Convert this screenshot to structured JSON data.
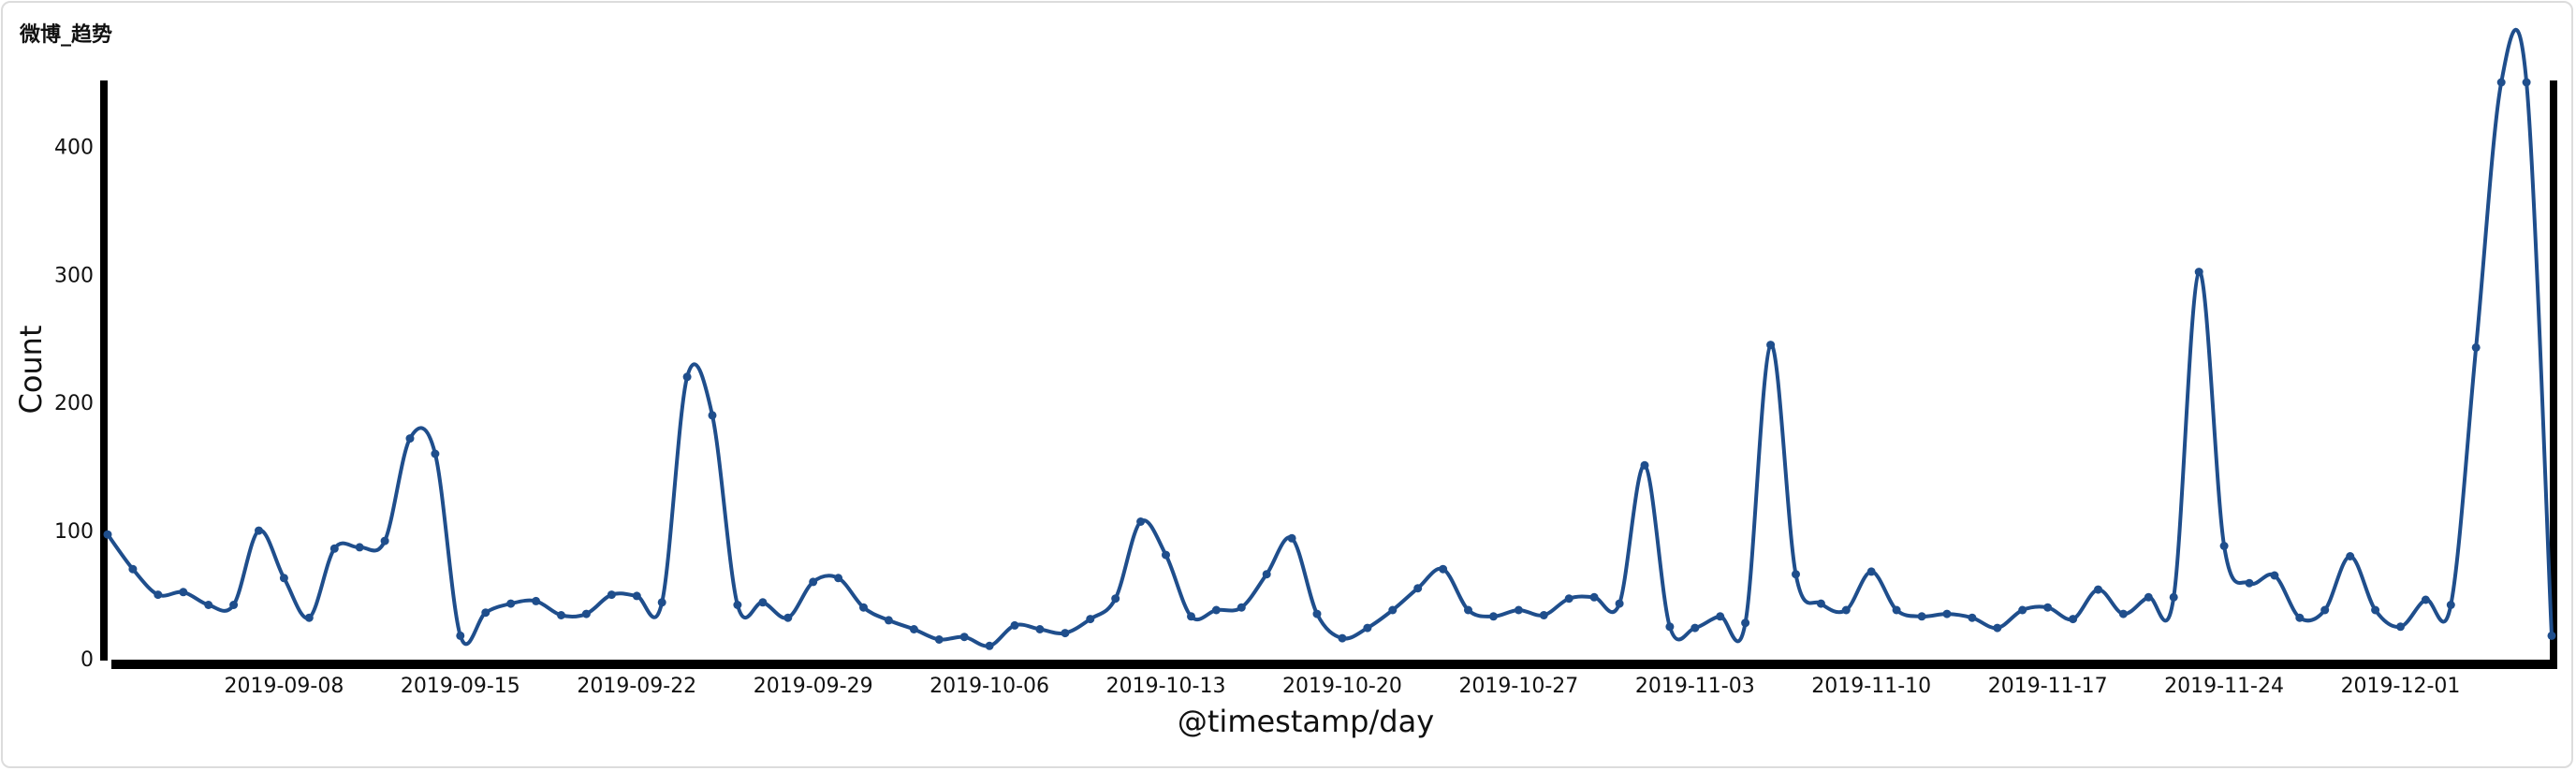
{
  "panel": {
    "title": "微博_趋势"
  },
  "chart_data": {
    "type": "line",
    "title": "微博_趋势",
    "xlabel": "@timestamp/day",
    "ylabel": "Count",
    "ylim": [
      0,
      450
    ],
    "yticks": [
      0,
      100,
      200,
      300,
      400
    ],
    "xlim": [
      "2019-09-01",
      "2019-12-07"
    ],
    "xticks": [
      "2019-09-08",
      "2019-09-15",
      "2019-09-22",
      "2019-09-29",
      "2019-10-06",
      "2019-10-13",
      "2019-10-20",
      "2019-10-27",
      "2019-11-03",
      "2019-11-10",
      "2019-11-17",
      "2019-11-24",
      "2019-12-01"
    ],
    "grid": false,
    "color": "#1f4e8c",
    "series": [
      {
        "x": [
          "2019-09-01",
          "2019-09-02",
          "2019-09-03",
          "2019-09-04",
          "2019-09-05",
          "2019-09-06",
          "2019-09-07",
          "2019-09-08",
          "2019-09-09",
          "2019-09-10",
          "2019-09-11",
          "2019-09-12",
          "2019-09-13",
          "2019-09-14",
          "2019-09-15",
          "2019-09-16",
          "2019-09-17",
          "2019-09-18",
          "2019-09-19",
          "2019-09-20",
          "2019-09-21",
          "2019-09-22",
          "2019-09-23",
          "2019-09-24",
          "2019-09-25",
          "2019-09-26",
          "2019-09-27",
          "2019-09-28",
          "2019-09-29",
          "2019-09-30",
          "2019-10-01",
          "2019-10-02",
          "2019-10-03",
          "2019-10-04",
          "2019-10-05",
          "2019-10-06",
          "2019-10-07",
          "2019-10-08",
          "2019-10-09",
          "2019-10-10",
          "2019-10-11",
          "2019-10-12",
          "2019-10-13",
          "2019-10-14",
          "2019-10-15",
          "2019-10-16",
          "2019-10-17",
          "2019-10-18",
          "2019-10-19",
          "2019-10-20",
          "2019-10-21",
          "2019-10-22",
          "2019-10-23",
          "2019-10-24",
          "2019-10-25",
          "2019-10-26",
          "2019-10-27",
          "2019-10-28",
          "2019-10-29",
          "2019-10-30",
          "2019-10-31",
          "2019-11-01",
          "2019-11-02",
          "2019-11-03",
          "2019-11-04",
          "2019-11-05",
          "2019-11-06",
          "2019-11-07",
          "2019-11-08",
          "2019-11-09",
          "2019-11-10",
          "2019-11-11",
          "2019-11-12",
          "2019-11-13",
          "2019-11-14",
          "2019-11-15",
          "2019-11-16",
          "2019-11-17",
          "2019-11-18",
          "2019-11-19",
          "2019-11-20",
          "2019-11-21",
          "2019-11-22",
          "2019-11-23",
          "2019-11-24",
          "2019-11-25",
          "2019-11-26",
          "2019-11-27",
          "2019-11-28",
          "2019-11-29",
          "2019-11-30",
          "2019-12-01",
          "2019-12-02",
          "2019-12-03",
          "2019-12-04",
          "2019-12-05",
          "2019-12-06",
          "2019-12-07"
        ],
        "y": [
          97,
          70,
          50,
          52,
          42,
          42,
          100,
          63,
          32,
          86,
          87,
          92,
          172,
          160,
          18,
          36,
          43,
          45,
          34,
          35,
          50,
          49,
          44,
          220,
          190,
          42,
          44,
          32,
          60,
          63,
          40,
          30,
          23,
          15,
          17,
          10,
          26,
          23,
          20,
          31,
          47,
          107,
          81,
          33,
          38,
          40,
          66,
          94,
          35,
          16,
          24,
          38,
          55,
          70,
          38,
          33,
          38,
          34,
          47,
          48,
          43,
          151,
          25,
          24,
          33,
          28,
          245,
          66,
          43,
          38,
          68,
          38,
          33,
          35,
          32,
          24,
          38,
          40,
          31,
          54,
          35,
          48,
          48,
          302,
          88,
          59,
          65,
          32,
          38,
          80,
          38,
          25,
          46,
          42,
          243,
          450,
          450,
          18
        ]
      }
    ]
  }
}
